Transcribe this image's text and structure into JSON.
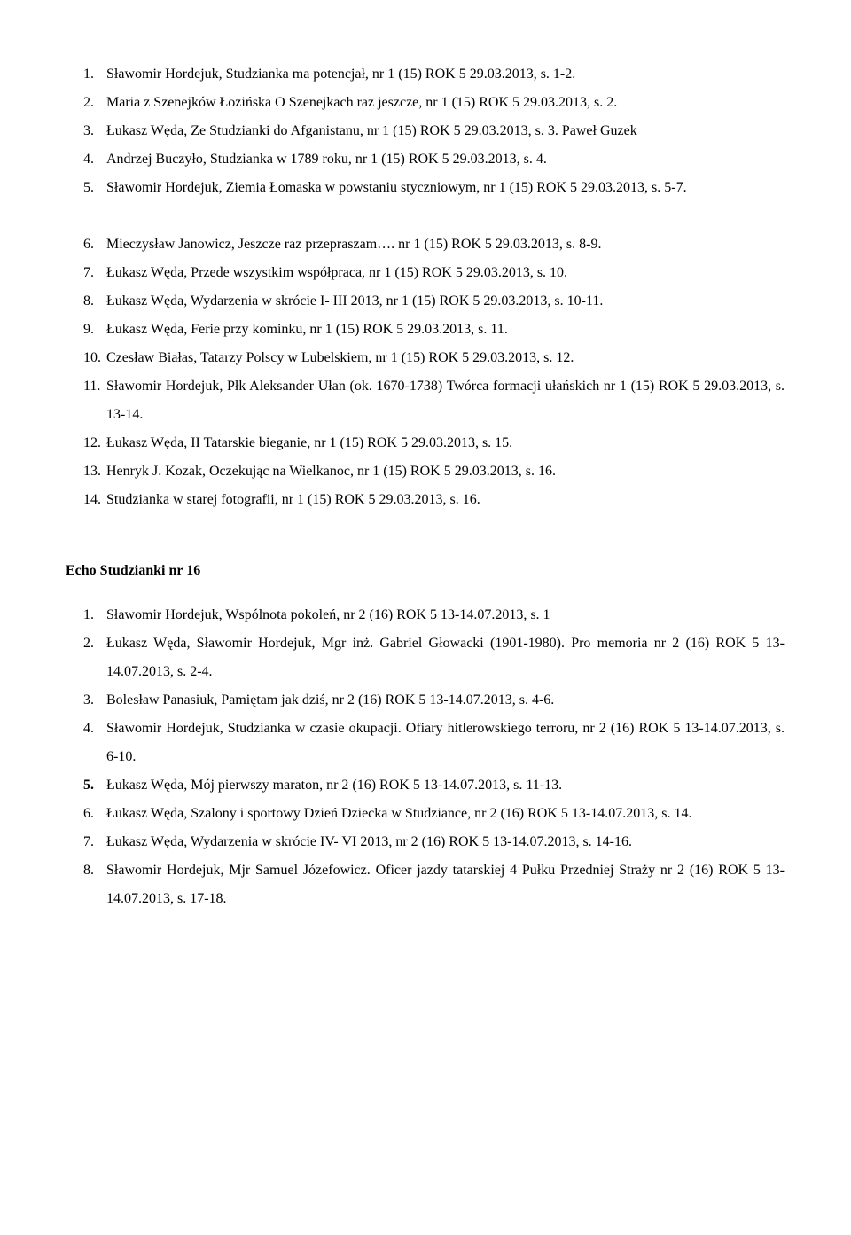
{
  "section1": {
    "items": [
      {
        "num": "1.",
        "text": "Sławomir Hordejuk, Studzianka ma potencjał, nr 1 (15) ROK 5  29.03.2013, s. 1-2."
      },
      {
        "num": "2.",
        "text": "Maria z Szenejków Łozińska O Szenejkach raz jeszcze, nr 1 (15) ROK 5  29.03.2013, s. 2."
      },
      {
        "num": "3.",
        "text": "Łukasz Węda, Ze Studzianki do Afganistanu, nr 1 (15) ROK 5  29.03.2013, s. 3. Paweł Guzek"
      },
      {
        "num": "4.",
        "text": "Andrzej Buczyło, Studzianka w 1789 roku, nr 1 (15) ROK 5  29.03.2013, s. 4."
      },
      {
        "num": "5.",
        "text": "Sławomir Hordejuk, Ziemia Łomaska w powstaniu styczniowym, nr 1 (15) ROK 5 29.03.2013, s. 5-7."
      }
    ],
    "items2": [
      {
        "num": "6.",
        "text": "Mieczysław Janowicz, Jeszcze raz przepraszam…. nr 1 (15) ROK 5  29.03.2013, s. 8-9."
      },
      {
        "num": "7.",
        "text": "Łukasz Węda, Przede wszystkim współpraca, nr 1 (15) ROK 5  29.03.2013, s. 10."
      },
      {
        "num": "8.",
        "text": "Łukasz Węda, Wydarzenia w skrócie I- III 2013, nr 1 (15) ROK 5  29.03.2013, s. 10-11."
      },
      {
        "num": "9.",
        "text": "Łukasz Węda, Ferie przy kominku, nr 1 (15) ROK 5  29.03.2013, s. 11."
      },
      {
        "num": "10.",
        "text": "Czesław Białas, Tatarzy Polscy w Lubelskiem, nr 1 (15) ROK 5  29.03.2013, s. 12."
      },
      {
        "num": "11.",
        "text": "Sławomir Hordejuk, Płk Aleksander Ułan (ok. 1670-1738) Twórca formacji ułańskich nr 1 (15) ROK 5  29.03.2013, s. 13-14."
      },
      {
        "num": "12.",
        "text": "Łukasz Węda, II Tatarskie bieganie, nr 1 (15) ROK 5  29.03.2013, s. 15."
      },
      {
        "num": "13.",
        "text": "Henryk J. Kozak, Oczekując na Wielkanoc, nr 1 (15) ROK 5  29.03.2013, s. 16."
      },
      {
        "num": "14.",
        "text": "Studzianka w starej fotografii, nr 1 (15) ROK 5  29.03.2013, s. 16."
      }
    ]
  },
  "section2": {
    "heading": "Echo Studzianki nr  16",
    "items": [
      {
        "num": "1.",
        "text": "Sławomir Hordejuk, Wspólnota pokoleń, nr 2 (16) ROK 5  13-14.07.2013, s. 1"
      },
      {
        "num": "2.",
        "text": "Łukasz Węda, Sławomir Hordejuk, Mgr inż. Gabriel Głowacki (1901-1980). Pro memoria nr 2 (16) ROK 5  13-14.07.2013, s. 2-4."
      },
      {
        "num": "3.",
        "text": "Bolesław Panasiuk, Pamiętam jak dziś, nr 2 (16) ROK 5  13-14.07.2013, s. 4-6."
      },
      {
        "num": "4.",
        "text": "Sławomir Hordejuk, Studzianka w czasie okupacji. Ofiary hitlerowskiego terroru,  nr 2 (16) ROK 5  13-14.07.2013, s. 6-10."
      },
      {
        "num": "5.",
        "text": "Łukasz Węda, Mój pierwszy maraton, nr 2 (16) ROK 5  13-14.07.2013, s. 11-13.",
        "bold": true
      },
      {
        "num": "6.",
        "text": "Łukasz Węda, Szalony i sportowy Dzień Dziecka w Studziance, nr 2 (16) ROK 5  13-14.07.2013, s. 14."
      },
      {
        "num": "7.",
        "text": "Łukasz Węda, Wydarzenia w skrócie IV- VI 2013, nr 2 (16) ROK 5  13-14.07.2013, s. 14-16."
      },
      {
        "num": "8.",
        "text": "Sławomir Hordejuk, Mjr Samuel Józefowicz. Oficer jazdy tatarskiej 4 Pułku Przedniej Straży nr 2 (16) ROK 5  13-14.07.2013, s. 17-18."
      }
    ]
  }
}
